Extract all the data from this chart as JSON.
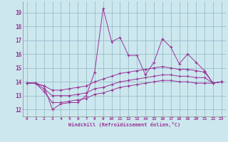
{
  "xlabel": "Windchill (Refroidissement éolien,°C)",
  "bg_color": "#cce8ee",
  "grid_color": "#99bbcc",
  "line_color": "#993399",
  "xlim": [
    -0.5,
    23.5
  ],
  "ylim": [
    11.5,
    19.8
  ],
  "xticks": [
    0,
    1,
    2,
    3,
    4,
    5,
    6,
    7,
    8,
    9,
    10,
    11,
    12,
    13,
    14,
    15,
    16,
    17,
    18,
    19,
    20,
    21,
    22,
    23
  ],
  "yticks": [
    12,
    13,
    14,
    15,
    16,
    17,
    18,
    19
  ],
  "series": [
    [
      13.9,
      13.9,
      13.7,
      12.0,
      12.4,
      12.5,
      12.5,
      13.0,
      14.7,
      19.3,
      16.9,
      17.2,
      15.9,
      15.9,
      14.5,
      15.4,
      17.1,
      16.5,
      15.3,
      16.0,
      15.4,
      14.8,
      13.9,
      14.0
    ],
    [
      13.9,
      13.9,
      13.7,
      13.4,
      13.4,
      13.5,
      13.6,
      13.7,
      14.0,
      14.2,
      14.4,
      14.6,
      14.7,
      14.8,
      14.9,
      15.0,
      15.1,
      15.0,
      14.9,
      14.9,
      14.8,
      14.7,
      13.9,
      14.0
    ],
    [
      13.9,
      13.9,
      13.5,
      13.0,
      13.0,
      13.0,
      13.1,
      13.2,
      13.5,
      13.6,
      13.8,
      14.0,
      14.1,
      14.2,
      14.3,
      14.4,
      14.5,
      14.5,
      14.4,
      14.4,
      14.3,
      14.3,
      13.9,
      14.0
    ],
    [
      13.9,
      13.9,
      13.3,
      12.5,
      12.5,
      12.6,
      12.7,
      12.8,
      13.1,
      13.2,
      13.4,
      13.6,
      13.7,
      13.8,
      13.9,
      14.0,
      14.1,
      14.1,
      14.0,
      14.0,
      13.9,
      13.9,
      13.9,
      14.0
    ]
  ]
}
